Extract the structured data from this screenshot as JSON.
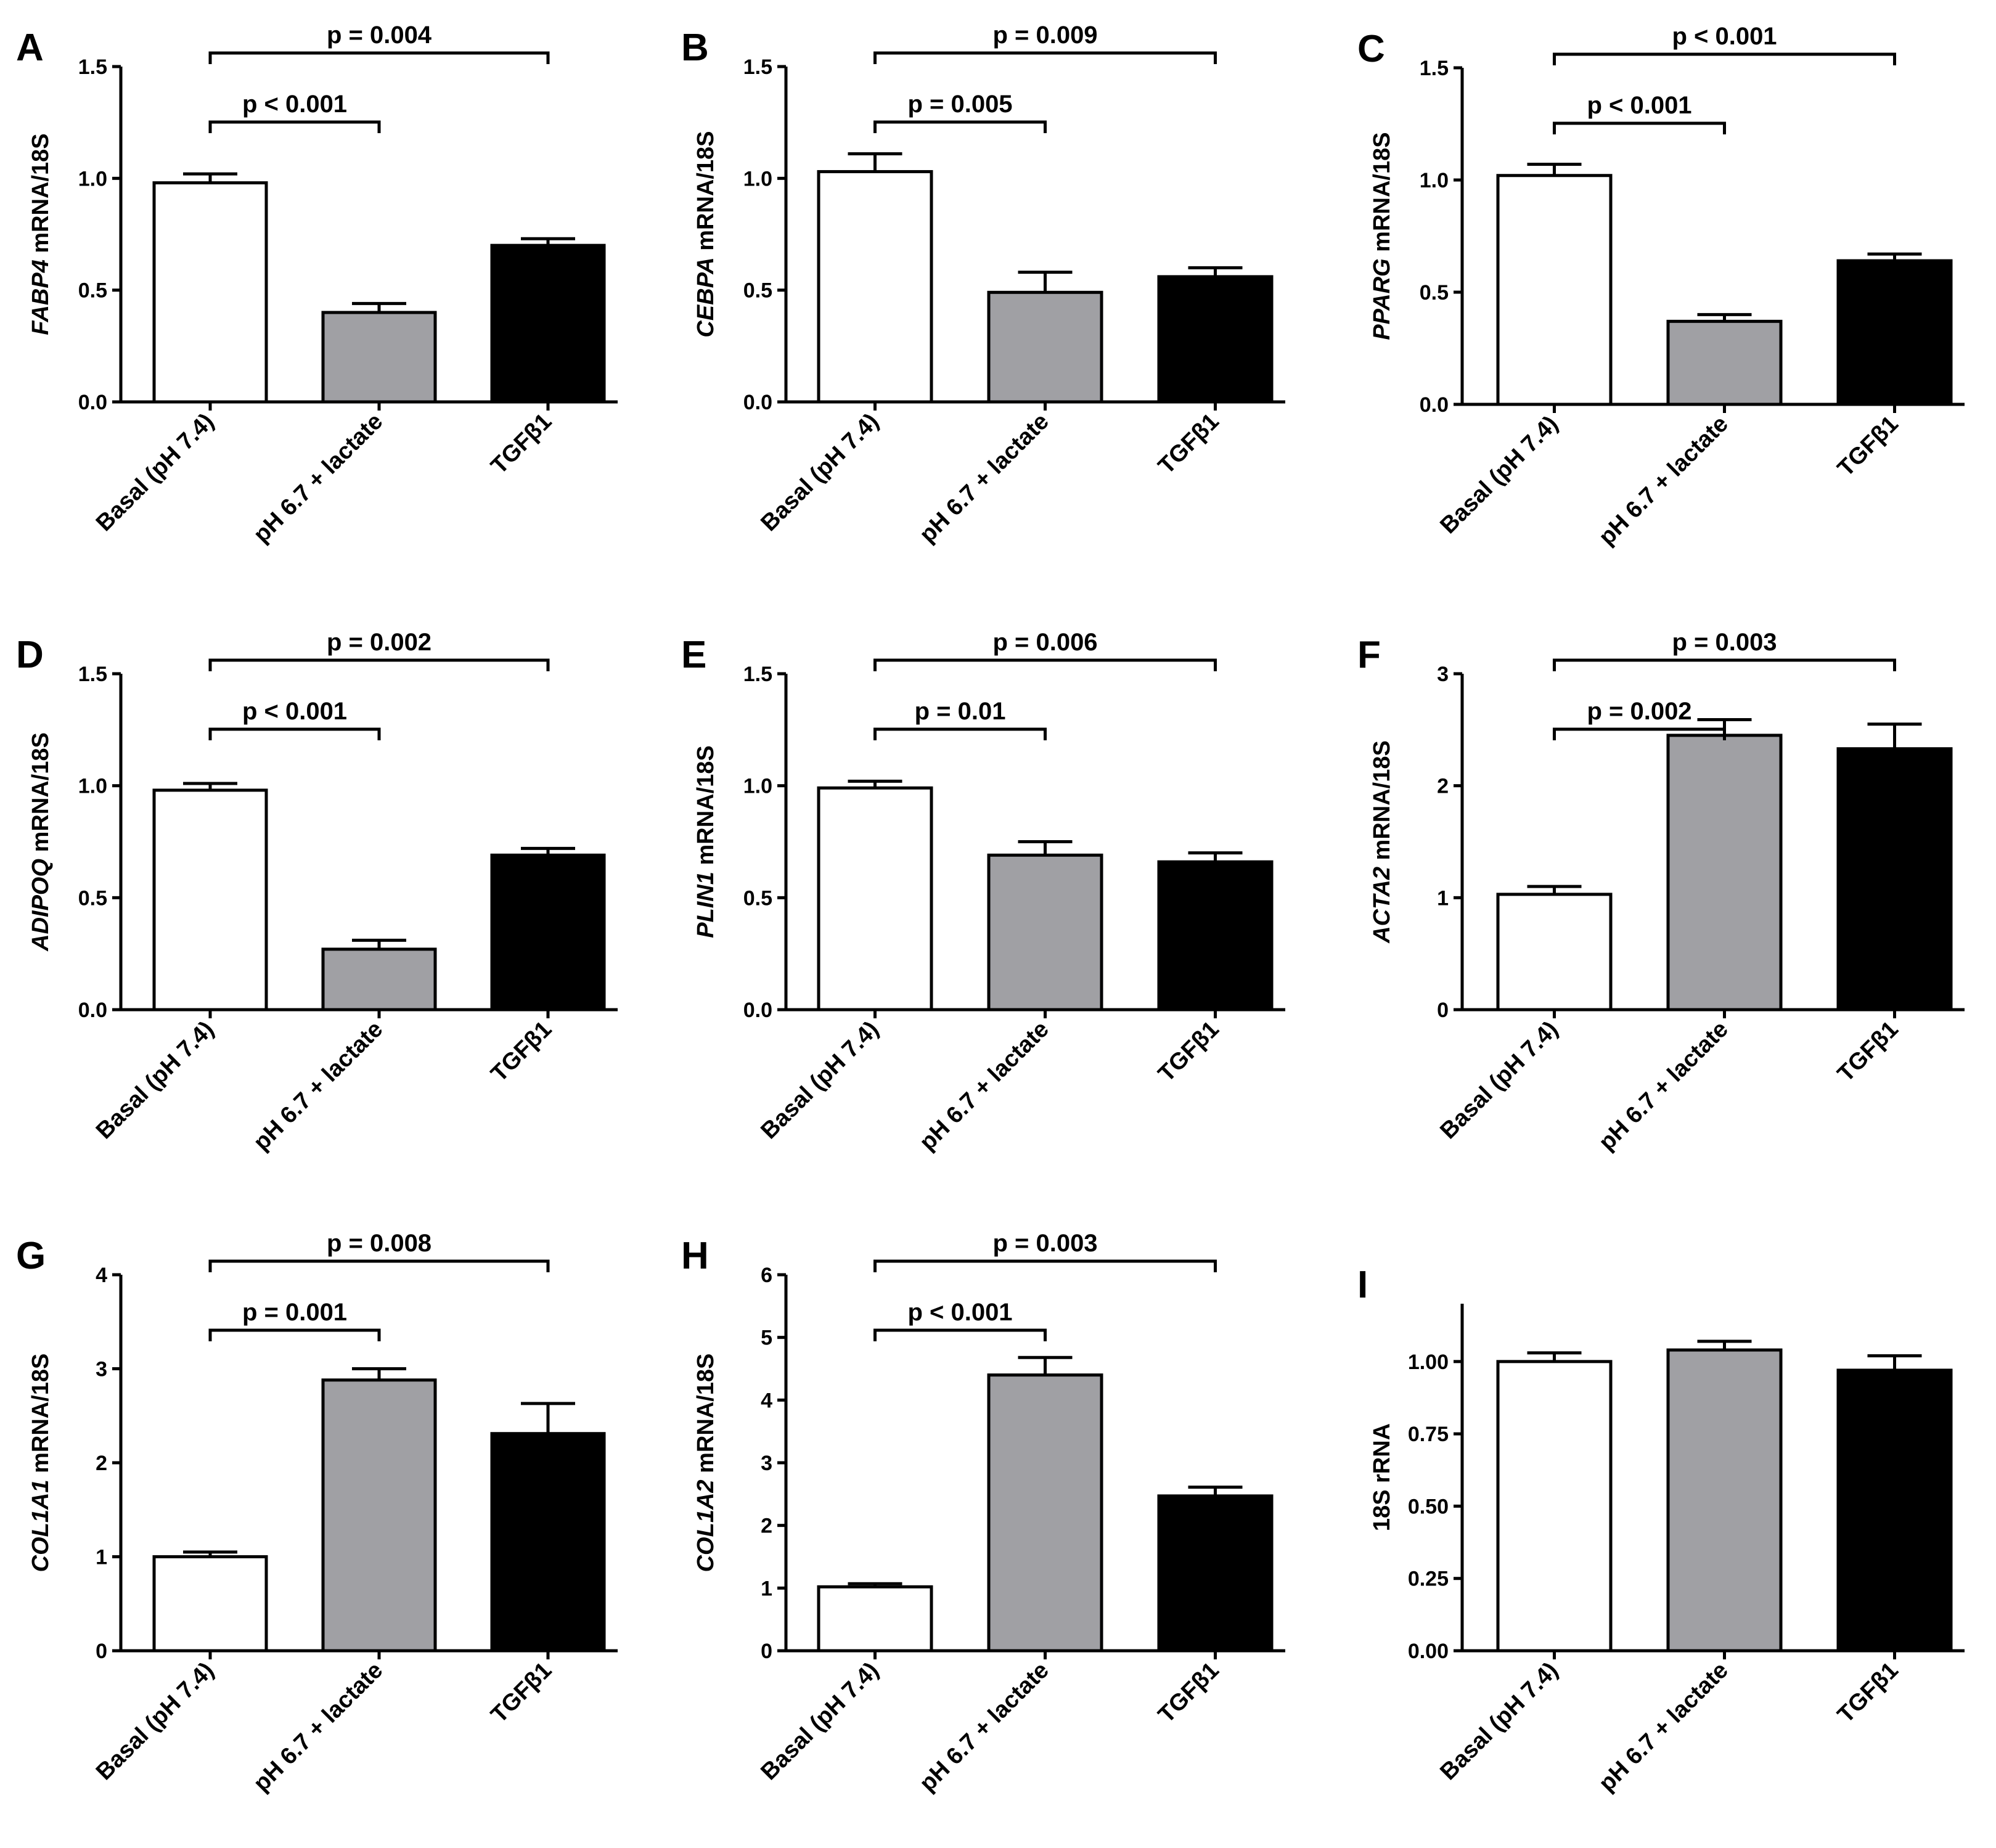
{
  "figure": {
    "bar_colors": [
      "#ffffff",
      "#a0a0a4",
      "#000000"
    ],
    "edge_color": "#000000"
  },
  "chart_data": [
    {
      "panel": "A",
      "type": "bar",
      "categories": [
        "Basal (pH 7.4)",
        "pH 6.7 + lactate",
        "TGFβ1"
      ],
      "values": [
        0.98,
        0.4,
        0.7
      ],
      "errors": [
        0.04,
        0.04,
        0.03
      ],
      "ylabel": {
        "gene": "FABP4",
        "rest": " mRNA/18S"
      },
      "ylim": [
        0,
        1.5
      ],
      "yticks": [
        "0.0",
        "0.5",
        "1.0",
        "1.5"
      ],
      "comparisons": [
        {
          "from": 0,
          "to": 1,
          "label": "p < 0.001"
        },
        {
          "from": 0,
          "to": 2,
          "label": "p = 0.004"
        }
      ]
    },
    {
      "panel": "B",
      "type": "bar",
      "categories": [
        "Basal (pH 7.4)",
        "pH 6.7 + lactate",
        "TGFβ1"
      ],
      "values": [
        1.03,
        0.49,
        0.56
      ],
      "errors": [
        0.08,
        0.09,
        0.04
      ],
      "ylabel": {
        "gene": "CEBPA",
        "rest": " mRNA/18S"
      },
      "ylim": [
        0,
        1.5
      ],
      "yticks": [
        "0.0",
        "0.5",
        "1.0",
        "1.5"
      ],
      "comparisons": [
        {
          "from": 0,
          "to": 1,
          "label": "p = 0.005"
        },
        {
          "from": 0,
          "to": 2,
          "label": "p = 0.009"
        }
      ]
    },
    {
      "panel": "C",
      "type": "bar",
      "categories": [
        "Basal (pH 7.4)",
        "pH 6.7 + lactate",
        "TGFβ1"
      ],
      "values": [
        1.02,
        0.37,
        0.64
      ],
      "errors": [
        0.05,
        0.03,
        0.03
      ],
      "ylabel": {
        "gene": "PPARG",
        "rest": " mRNA/18S"
      },
      "ylim": [
        0,
        1.5
      ],
      "yticks": [
        "0.0",
        "0.5",
        "1.0",
        "1.5"
      ],
      "comparisons": [
        {
          "from": 0,
          "to": 1,
          "label": "p < 0.001"
        },
        {
          "from": 0,
          "to": 2,
          "label": "p < 0.001"
        }
      ]
    },
    {
      "panel": "D",
      "type": "bar",
      "categories": [
        "Basal (pH 7.4)",
        "pH 6.7 + lactate",
        "TGFβ1"
      ],
      "values": [
        0.98,
        0.27,
        0.69
      ],
      "errors": [
        0.03,
        0.04,
        0.03
      ],
      "ylabel": {
        "gene": "ADIPOQ",
        "rest": " mRNA/18S"
      },
      "ylim": [
        0,
        1.5
      ],
      "yticks": [
        "0.0",
        "0.5",
        "1.0",
        "1.5"
      ],
      "comparisons": [
        {
          "from": 0,
          "to": 1,
          "label": "p < 0.001"
        },
        {
          "from": 0,
          "to": 2,
          "label": "p = 0.002"
        }
      ]
    },
    {
      "panel": "E",
      "type": "bar",
      "categories": [
        "Basal (pH 7.4)",
        "pH 6.7 + lactate",
        "TGFβ1"
      ],
      "values": [
        0.99,
        0.69,
        0.66
      ],
      "errors": [
        0.03,
        0.06,
        0.04
      ],
      "ylabel": {
        "gene": "PLIN1",
        "rest": " mRNA/18S"
      },
      "ylim": [
        0,
        1.5
      ],
      "yticks": [
        "0.0",
        "0.5",
        "1.0",
        "1.5"
      ],
      "comparisons": [
        {
          "from": 0,
          "to": 1,
          "label": "p = 0.01"
        },
        {
          "from": 0,
          "to": 2,
          "label": "p = 0.006"
        }
      ]
    },
    {
      "panel": "F",
      "type": "bar",
      "categories": [
        "Basal (pH 7.4)",
        "pH 6.7 + lactate",
        "TGFβ1"
      ],
      "values": [
        1.03,
        2.45,
        2.33
      ],
      "errors": [
        0.07,
        0.14,
        0.22
      ],
      "ylabel": {
        "gene": "ACTA2",
        "rest": " mRNA/18S"
      },
      "ylim": [
        0,
        3
      ],
      "yticks": [
        "0",
        "1",
        "2",
        "3"
      ],
      "comparisons": [
        {
          "from": 0,
          "to": 1,
          "label": "p = 0.002"
        },
        {
          "from": 0,
          "to": 2,
          "label": "p = 0.003"
        }
      ]
    },
    {
      "panel": "G",
      "type": "bar",
      "categories": [
        "Basal (pH 7.4)",
        "pH 6.7 + lactate",
        "TGFβ1"
      ],
      "values": [
        1.0,
        2.88,
        2.31
      ],
      "errors": [
        0.05,
        0.12,
        0.32
      ],
      "ylabel": {
        "gene": "COL1A1",
        "rest": " mRNA/18S"
      },
      "ylim": [
        0,
        4
      ],
      "yticks": [
        "0",
        "1",
        "2",
        "3",
        "4"
      ],
      "comparisons": [
        {
          "from": 0,
          "to": 1,
          "label": "p = 0.001"
        },
        {
          "from": 0,
          "to": 2,
          "label": "p = 0.008"
        }
      ]
    },
    {
      "panel": "H",
      "type": "bar",
      "categories": [
        "Basal (pH 7.4)",
        "pH 6.7 + lactate",
        "TGFβ1"
      ],
      "values": [
        1.02,
        4.4,
        2.47
      ],
      "errors": [
        0.05,
        0.28,
        0.14
      ],
      "ylabel": {
        "gene": "COL1A2",
        "rest": " mRNA/18S"
      },
      "ylim": [
        0,
        6
      ],
      "yticks": [
        "0",
        "1",
        "2",
        "3",
        "4",
        "5",
        "6"
      ],
      "comparisons": [
        {
          "from": 0,
          "to": 1,
          "label": "p < 0.001"
        },
        {
          "from": 0,
          "to": 2,
          "label": "p = 0.003"
        }
      ]
    },
    {
      "panel": "I",
      "type": "bar",
      "categories": [
        "Basal (pH 7.4)",
        "pH 6.7 + lactate",
        "TGFβ1"
      ],
      "values": [
        1.0,
        1.04,
        0.97
      ],
      "errors": [
        0.03,
        0.03,
        0.05
      ],
      "ylabel": {
        "gene": "",
        "rest": "18S rRNA"
      },
      "ylim": [
        0,
        1.2
      ],
      "yticks": [
        "0.00",
        "0.25",
        "0.50",
        "0.75",
        "1.00"
      ],
      "comparisons": []
    }
  ]
}
